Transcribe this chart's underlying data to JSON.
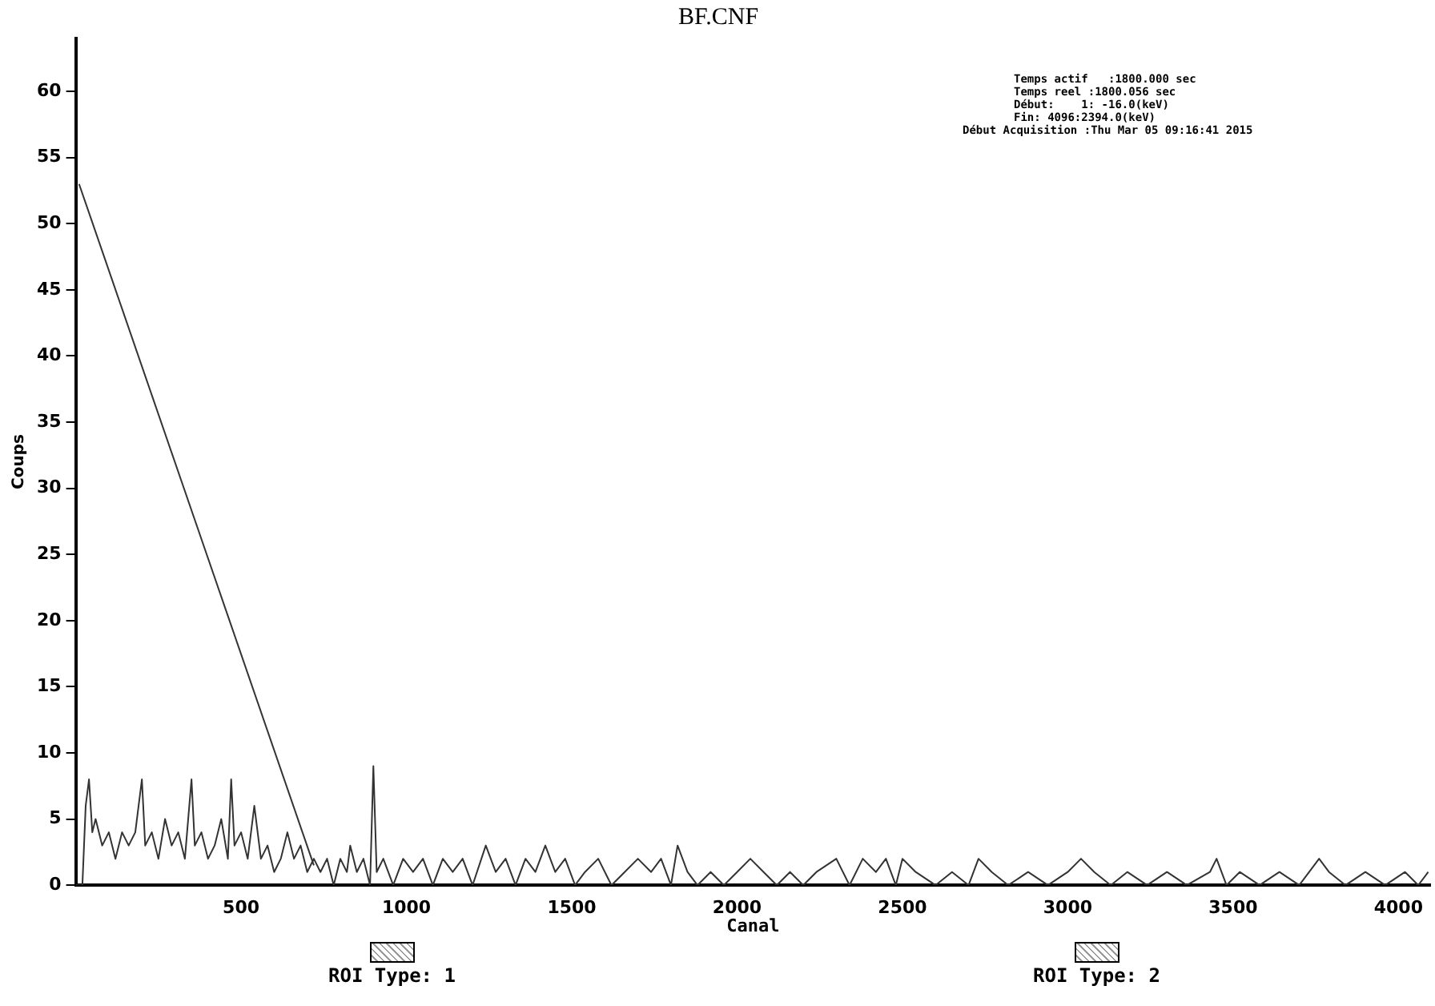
{
  "chart_data": {
    "type": "line",
    "title": "BF.CNF",
    "xlabel": "Canal",
    "ylabel": "Coups",
    "xlim": [
      0,
      4096
    ],
    "xticks": [
      500,
      1000,
      1500,
      2000,
      2500,
      3000,
      3500,
      4000
    ],
    "ylim": [
      0,
      64
    ],
    "yticks": [
      0,
      5,
      10,
      15,
      20,
      25,
      30,
      35,
      40,
      45,
      50,
      55,
      60
    ],
    "grid": false,
    "legend": false,
    "marker": "none",
    "line_style": "solid",
    "annotations": [
      "Temps actif   :1800.000 sec",
      "Temps reel :1800.056 sec",
      "Début:    1: -16.0(keV)",
      "Fin: 4096:2394.0(keV)",
      "Début Acquisition :Thu Mar 05 09:16:41 2015",
      "ROI Type: 1",
      "ROI Type: 2"
    ],
    "series": [
      {
        "color": "#333333",
        "x": [
          0,
          20,
          30,
          40,
          50,
          60,
          80,
          100,
          120,
          140,
          160,
          180,
          200,
          210,
          230,
          250,
          270,
          290,
          310,
          330,
          350,
          360,
          380,
          400,
          420,
          440,
          460,
          470,
          480,
          500,
          520,
          540,
          560,
          580,
          600,
          620,
          640,
          660,
          680,
          700,
          720,
          740,
          760,
          780,
          800,
          820,
          830,
          850,
          870,
          890,
          900,
          910,
          930,
          960,
          990,
          1020,
          1050,
          1080,
          1110,
          1140,
          1170,
          1200,
          1240,
          1270,
          1300,
          1330,
          1360,
          1390,
          1420,
          1450,
          1480,
          1510,
          1540,
          1580,
          1620,
          1660,
          1700,
          1740,
          1770,
          1800,
          1820,
          1850,
          1880,
          1920,
          1960,
          2000,
          2040,
          2080,
          2120,
          2160,
          2200,
          2240,
          2300,
          2340,
          2380,
          2420,
          2450,
          2480,
          2500,
          2540,
          2600,
          2650,
          2700,
          2730,
          2770,
          2820,
          2880,
          2940,
          3000,
          3040,
          3080,
          3130,
          3180,
          3240,
          3300,
          3360,
          3430,
          3450,
          3480,
          3520,
          3580,
          3640,
          3700,
          3760,
          3790,
          3840,
          3900,
          3960,
          4020,
          4060,
          4090
        ],
        "values": [
          0,
          0,
          6,
          8,
          4,
          5,
          3,
          4,
          2,
          4,
          3,
          4,
          8,
          3,
          4,
          2,
          5,
          3,
          4,
          2,
          8,
          3,
          4,
          2,
          3,
          5,
          2,
          8,
          3,
          4,
          2,
          6,
          2,
          3,
          1,
          2,
          4,
          2,
          3,
          1,
          2,
          1,
          2,
          0,
          2,
          1,
          3,
          1,
          2,
          0,
          9,
          1,
          2,
          0,
          2,
          1,
          2,
          0,
          2,
          1,
          2,
          0,
          3,
          1,
          2,
          0,
          2,
          1,
          3,
          1,
          2,
          0,
          1,
          2,
          0,
          1,
          2,
          1,
          2,
          0,
          3,
          1,
          0,
          1,
          0,
          1,
          2,
          1,
          0,
          1,
          0,
          1,
          2,
          0,
          2,
          1,
          2,
          0,
          2,
          1,
          0,
          1,
          0,
          2,
          1,
          0,
          1,
          0,
          1,
          2,
          1,
          0,
          1,
          0,
          1,
          0,
          1,
          2,
          0,
          1,
          0,
          1,
          0,
          2,
          1,
          0,
          1,
          0,
          1,
          0,
          1
        ]
      },
      {
        "color": "#333333",
        "x": [
          10,
          720
        ],
        "values": [
          53,
          1.5
        ]
      }
    ]
  }
}
